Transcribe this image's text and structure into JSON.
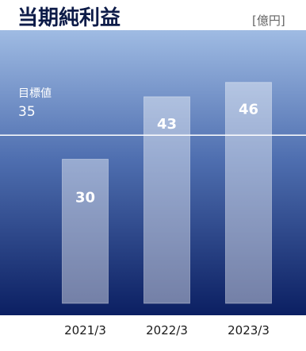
{
  "title": "当期純利益",
  "unit": "[億円]",
  "target": {
    "label": "目標値",
    "value": 35
  },
  "colors": {
    "title": "#0d1b48",
    "gradient_top": "#9fbbe3",
    "gradient_bottom": "#0b1f62",
    "bar_fill": "#ffffff",
    "target_line": "#ffffff"
  },
  "chart_data": {
    "type": "bar",
    "title": "当期純利益",
    "categories": [
      "2021/3",
      "2022/3",
      "2023/3"
    ],
    "values": [
      30,
      43,
      46
    ],
    "unit": "[億円]",
    "ylim": [
      0,
      52
    ],
    "reference_line": {
      "label": "目標値",
      "value": 35
    },
    "grid": false,
    "legend": "none"
  }
}
